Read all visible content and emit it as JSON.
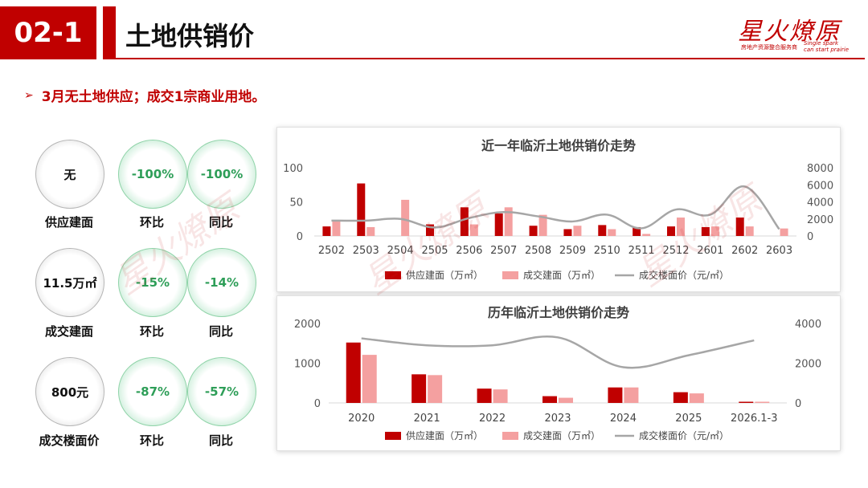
{
  "header": {
    "section_number": "02-1",
    "title": "土地供销价"
  },
  "logo": {
    "name": "星火燎原",
    "tagline_cn": "房地产资源整合服务商",
    "tagline_en_1": "Single spark",
    "tagline_en_2": "can start prairie"
  },
  "subtitle": "3月无土地供应；成交1宗商业用地。",
  "kpis": [
    {
      "value": "无",
      "label": "供应建面",
      "mom": "-100%",
      "mom_label": "环比",
      "yoy": "-100%",
      "yoy_label": "同比"
    },
    {
      "value": "11.5万㎡",
      "label": "成交建面",
      "mom": "-15%",
      "mom_label": "环比",
      "yoy": "-14%",
      "yoy_label": "同比"
    },
    {
      "value": "800元",
      "label": "成交楼面价",
      "mom": "-87%",
      "mom_label": "环比",
      "yoy": "-57%",
      "yoy_label": "同比"
    }
  ],
  "colors": {
    "supply": "#C00000",
    "deal": "#F4A0A0",
    "price": "#A6A6A6",
    "accent": "#C00000",
    "kpi_green": "#2E9E58"
  },
  "chart_data": [
    {
      "type": "bar",
      "title": "近一年临沂土地供销价走势",
      "categories": [
        "2502",
        "2503",
        "2504",
        "2505",
        "2506",
        "2507",
        "2508",
        "2509",
        "2510",
        "2511",
        "2512",
        "2601",
        "2602",
        "2603"
      ],
      "series": [
        {
          "name": "供应建面（万㎡）",
          "kind": "bar",
          "axis": "left",
          "values": [
            14,
            77,
            0,
            17,
            42,
            33,
            15,
            10,
            16,
            13,
            14,
            13,
            27,
            0
          ]
        },
        {
          "name": "成交建面（万㎡）",
          "kind": "bar",
          "axis": "left",
          "values": [
            22,
            13,
            53,
            0,
            17,
            42,
            31,
            15,
            10,
            3,
            27,
            14,
            14,
            11
          ]
        },
        {
          "name": "成交楼面价（元/㎡）",
          "kind": "line",
          "axis": "right",
          "values": [
            1800,
            1800,
            2000,
            1000,
            2100,
            2800,
            2300,
            1700,
            2500,
            900,
            3100,
            2500,
            5800,
            800
          ]
        }
      ],
      "ylim_left": [
        0,
        100
      ],
      "yticks_left": [
        0,
        50,
        100
      ],
      "ylim_right": [
        0,
        8000
      ],
      "yticks_right": [
        0,
        2000,
        4000,
        6000,
        8000
      ],
      "legend": "bottom"
    },
    {
      "type": "bar",
      "title": "历年临沂土地供销价走势",
      "categories": [
        "2020",
        "2021",
        "2022",
        "2023",
        "2024",
        "2025",
        "2026.1-3"
      ],
      "series": [
        {
          "name": "供应建面（万㎡）",
          "kind": "bar",
          "axis": "left",
          "values": [
            1520,
            720,
            360,
            170,
            390,
            270,
            30
          ]
        },
        {
          "name": "成交建面（万㎡）",
          "kind": "bar",
          "axis": "left",
          "values": [
            1210,
            700,
            340,
            130,
            390,
            240,
            30
          ]
        },
        {
          "name": "成交楼面价（元/㎡）",
          "kind": "line",
          "axis": "right",
          "values": [
            3250,
            2900,
            2900,
            3300,
            1800,
            2400,
            3150
          ]
        }
      ],
      "ylim_left": [
        0,
        2000
      ],
      "yticks_left": [
        0,
        1000,
        2000
      ],
      "ylim_right": [
        0,
        4000
      ],
      "yticks_right": [
        0,
        2000,
        4000
      ],
      "legend": "bottom"
    }
  ]
}
